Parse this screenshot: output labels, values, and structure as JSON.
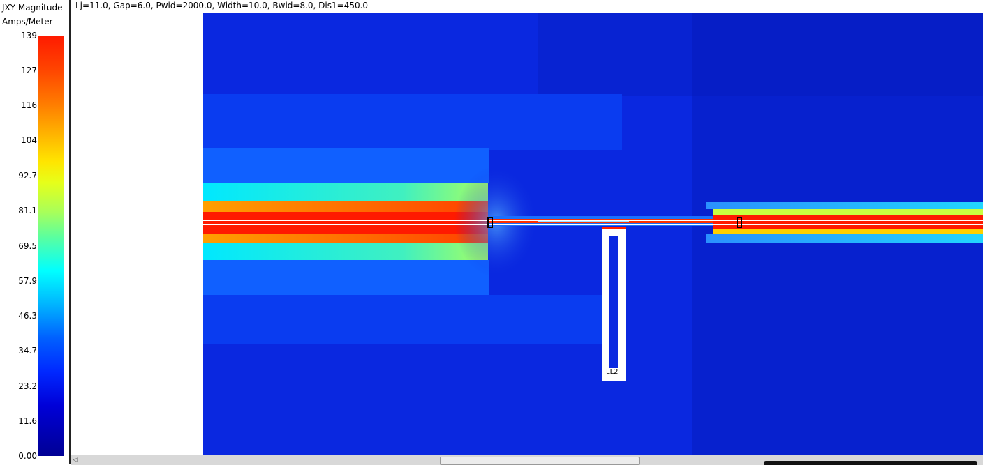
{
  "legend": {
    "title_line1": "JXY Magnitude",
    "title_line2": "Amps/Meter",
    "ticks": [
      "139",
      "127",
      "116",
      "104",
      "92.7",
      "81.1",
      "69.5",
      "57.9",
      "46.3",
      "34.7",
      "23.2",
      "11.6",
      "0.00"
    ]
  },
  "plot": {
    "param_label": "Lj=11.0, Gap=6.0, Pwid=2000.0, Width=10.0, Bwid=8.0, Dis1=450.0",
    "inductor_label": "LL2",
    "colors": {
      "background": "#0a28e0",
      "max": "#ff1a00",
      "min": "#000094"
    }
  },
  "scrollbar": {
    "left_arrow_icon": "arrow-left-icon"
  }
}
